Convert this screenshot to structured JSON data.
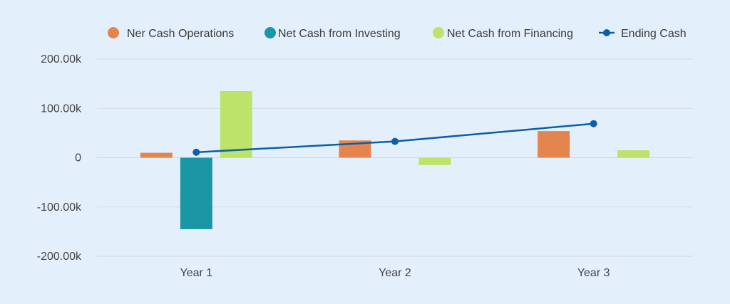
{
  "chart_data": {
    "type": "bar",
    "categories": [
      "Year 1",
      "Year 2",
      "Year 3"
    ],
    "series": [
      {
        "name": "Ner Cash Operations",
        "kind": "bar",
        "color": "#e5854e",
        "values": [
          10000,
          35000,
          54000
        ]
      },
      {
        "name": "Net Cash from Investing",
        "kind": "bar",
        "color": "#1a96a4",
        "values": [
          -145000,
          0,
          0
        ]
      },
      {
        "name": "Net Cash from Financing",
        "kind": "bar",
        "color": "#bde36b",
        "values": [
          135000,
          -15000,
          15000
        ]
      },
      {
        "name": "Ending Cash",
        "kind": "line",
        "color": "#0c5ea6",
        "values": [
          11000,
          33000,
          69000
        ]
      }
    ],
    "ylim": [
      -200000,
      200000
    ],
    "yticks": [
      200000,
      100000,
      0,
      -100000,
      -200000
    ],
    "ytick_labels": [
      "200.00k",
      "100.00k",
      "0",
      "-100.00k",
      "-200.00k"
    ],
    "grid": true,
    "legend_position": "top",
    "xlabel": "",
    "ylabel": ""
  }
}
